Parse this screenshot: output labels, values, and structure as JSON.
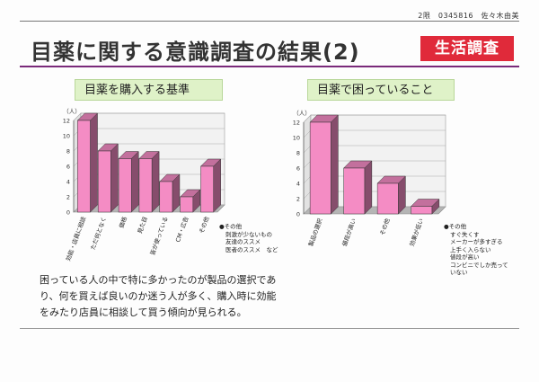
{
  "header": {
    "note": "2限　0345816　佐々木由美",
    "title": "目薬に関する意識調査の結果(2)",
    "tag": "生活調査"
  },
  "chart_data": [
    {
      "type": "bar",
      "title": "目薬を購入する基準",
      "ylabel": "（人）",
      "ylim": [
        0,
        12
      ],
      "yticks": [
        0,
        2,
        4,
        6,
        8,
        10,
        12
      ],
      "categories": [
        "効能・店員に相談",
        "ただ何となく",
        "価格",
        "見た目",
        "皆が使っている",
        "CM・広告",
        "その他"
      ],
      "values": [
        12,
        8,
        7,
        7,
        4,
        2,
        6
      ],
      "color": "#f48cc4"
    },
    {
      "type": "bar",
      "title": "目薬で困っていること",
      "ylabel": "（人）",
      "ylim": [
        0,
        12
      ],
      "yticks": [
        0,
        2,
        4,
        6,
        8,
        10,
        12
      ],
      "categories": [
        "製品の選択",
        "値段が高い",
        "その他",
        "効果が低い"
      ],
      "values": [
        12,
        6,
        4,
        1
      ],
      "color": "#f48cc4"
    }
  ],
  "notes": {
    "left": [
      "●その他",
      "刺激が少ないもの",
      "友達のススメ",
      "医者のススメ　など"
    ],
    "right": [
      "●その他",
      "すぐ失くす",
      "メーカーが多すぎる",
      "上手く入らない",
      "値段が高い",
      "コンビニでしか売って",
      "いない"
    ]
  },
  "summary": {
    "lines": [
      "困っている人の中で特に多かったのが製品の選択であ",
      "り、何を買えば良いのか迷う人が多く、購入時に効能",
      "をみたり店員に相談して買う傾向が見られる。"
    ]
  }
}
